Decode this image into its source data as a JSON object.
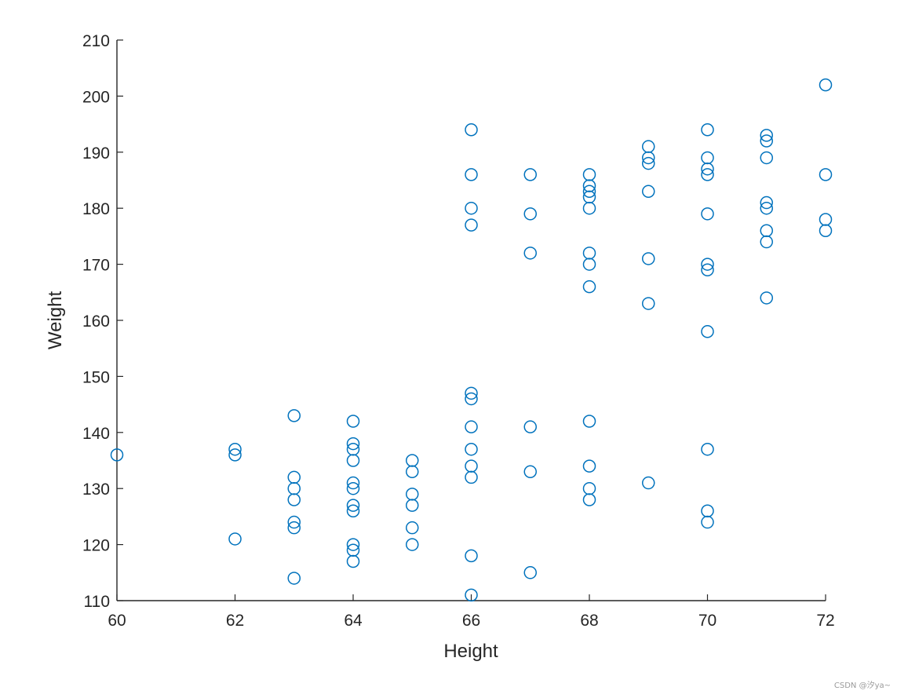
{
  "chart_data": {
    "type": "scatter",
    "title": "",
    "xlabel": "Height",
    "ylabel": "Weight",
    "xlim": [
      60,
      72
    ],
    "ylim": [
      110,
      210
    ],
    "xticks": [
      "60",
      "62",
      "64",
      "66",
      "68",
      "70",
      "72"
    ],
    "yticks": [
      "110",
      "120",
      "130",
      "140",
      "150",
      "160",
      "170",
      "180",
      "190",
      "200",
      "210"
    ],
    "grid": false,
    "legend": "none",
    "marker": "open-circle",
    "color": "#0072BD",
    "points": [
      [
        60,
        136
      ],
      [
        62,
        137
      ],
      [
        62,
        136
      ],
      [
        62,
        121
      ],
      [
        63,
        143
      ],
      [
        63,
        132
      ],
      [
        63,
        130
      ],
      [
        63,
        128
      ],
      [
        63,
        124
      ],
      [
        63,
        123
      ],
      [
        63,
        114
      ],
      [
        64,
        142
      ],
      [
        64,
        138
      ],
      [
        64,
        137
      ],
      [
        64,
        135
      ],
      [
        64,
        131
      ],
      [
        64,
        130
      ],
      [
        64,
        127
      ],
      [
        64,
        126
      ],
      [
        64,
        120
      ],
      [
        64,
        119
      ],
      [
        64,
        117
      ],
      [
        65,
        135
      ],
      [
        65,
        133
      ],
      [
        65,
        129
      ],
      [
        65,
        127
      ],
      [
        65,
        123
      ],
      [
        65,
        120
      ],
      [
        66,
        194
      ],
      [
        66,
        186
      ],
      [
        66,
        180
      ],
      [
        66,
        177
      ],
      [
        66,
        147
      ],
      [
        66,
        146
      ],
      [
        66,
        141
      ],
      [
        66,
        137
      ],
      [
        66,
        134
      ],
      [
        66,
        132
      ],
      [
        66,
        118
      ],
      [
        66,
        111
      ],
      [
        67,
        186
      ],
      [
        67,
        179
      ],
      [
        67,
        172
      ],
      [
        67,
        141
      ],
      [
        67,
        133
      ],
      [
        67,
        115
      ],
      [
        68,
        186
      ],
      [
        68,
        184
      ],
      [
        68,
        183
      ],
      [
        68,
        182
      ],
      [
        68,
        180
      ],
      [
        68,
        172
      ],
      [
        68,
        170
      ],
      [
        68,
        166
      ],
      [
        68,
        142
      ],
      [
        68,
        134
      ],
      [
        68,
        130
      ],
      [
        68,
        128
      ],
      [
        69,
        191
      ],
      [
        69,
        189
      ],
      [
        69,
        188
      ],
      [
        69,
        183
      ],
      [
        69,
        171
      ],
      [
        69,
        163
      ],
      [
        69,
        131
      ],
      [
        70,
        194
      ],
      [
        70,
        189
      ],
      [
        70,
        187
      ],
      [
        70,
        186
      ],
      [
        70,
        179
      ],
      [
        70,
        170
      ],
      [
        70,
        169
      ],
      [
        70,
        158
      ],
      [
        70,
        137
      ],
      [
        70,
        126
      ],
      [
        70,
        124
      ],
      [
        71,
        193
      ],
      [
        71,
        192
      ],
      [
        71,
        189
      ],
      [
        71,
        181
      ],
      [
        71,
        180
      ],
      [
        71,
        176
      ],
      [
        71,
        174
      ],
      [
        71,
        164
      ],
      [
        72,
        202
      ],
      [
        72,
        186
      ],
      [
        72,
        178
      ],
      [
        72,
        176
      ]
    ]
  },
  "watermark": "CSDN @汐ya~"
}
